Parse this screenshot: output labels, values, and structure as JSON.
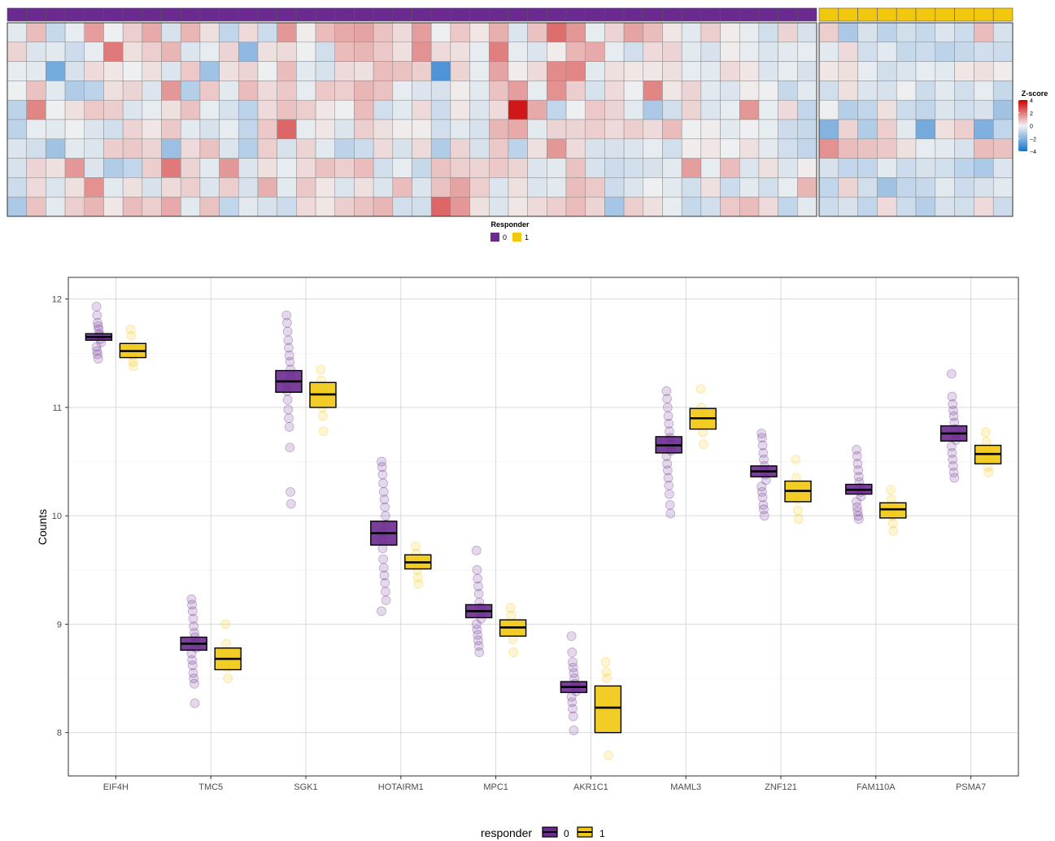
{
  "heatmap": {
    "legend_title": "Z-score",
    "legend_ticks": [
      4,
      2,
      0,
      -2,
      -4
    ],
    "annotation_title": "Responder",
    "annotation_levels": [
      "0",
      "1"
    ],
    "colors": {
      "low": "#1874CD",
      "mid": "#F2F2F2",
      "high": "#CD0000",
      "group0": "#6A2A8F",
      "group1": "#F2C80F"
    }
  },
  "chart_data": [
    {
      "type": "heatmap",
      "value_range": [
        -4,
        4
      ],
      "column_groups": [
        {
          "name": "0",
          "n_columns": 42
        },
        {
          "name": "1",
          "n_columns": 10
        }
      ],
      "values": [
        [
          -0.3,
          0.9,
          -0.8,
          -0.2,
          1.4,
          -0.1,
          0.6,
          1.2,
          -0.5,
          1.0,
          0.3,
          -0.9,
          0.4,
          -0.7,
          1.5,
          0.1,
          0.9,
          1.2,
          1.3,
          0.8,
          0.4,
          1.4,
          -0.1,
          0.7,
          0.2,
          1.1,
          -0.4,
          0.8,
          2.2,
          1.5,
          -0.2,
          0.5,
          1.3,
          0.9,
          0.2,
          -0.3,
          0.6,
          0.1,
          -0.2,
          -0.6,
          0.5,
          -0.5,
          0.6,
          -1.3,
          -0.5,
          -1.0,
          -0.6,
          -0.8,
          -0.4,
          -0.7,
          0.9,
          -0.5
        ],
        [
          0.5,
          -0.4,
          -0.3,
          -0.7,
          -0.2,
          2.0,
          0.3,
          0.6,
          1.0,
          -0.4,
          -0.2,
          0.5,
          -1.8,
          0.3,
          0.4,
          -0.1,
          -0.6,
          0.9,
          1.0,
          0.7,
          0.3,
          1.6,
          0.4,
          0.3,
          -0.2,
          1.9,
          -0.2,
          -0.4,
          0.1,
          1.0,
          1.2,
          -0.2,
          -0.6,
          0.4,
          0.5,
          -0.3,
          -0.5,
          0.1,
          -0.2,
          -0.4,
          -0.3,
          -0.2,
          -0.3,
          0.4,
          -0.6,
          -0.3,
          -0.8,
          -0.7,
          -1.0,
          -0.8,
          -0.6,
          -0.7
        ],
        [
          -0.2,
          -0.3,
          -2.3,
          -0.5,
          0.4,
          0.2,
          -0.1,
          0.3,
          -0.4,
          0.7,
          -1.5,
          0.3,
          0.5,
          -0.1,
          0.9,
          -0.3,
          -0.5,
          0.4,
          0.3,
          0.9,
          0.8,
          0.6,
          -3.0,
          0.5,
          -0.2,
          1.3,
          0.1,
          0.4,
          1.7,
          1.8,
          -0.3,
          0.3,
          0.2,
          0.2,
          0.3,
          -0.2,
          -0.3,
          0.4,
          0.2,
          -0.4,
          -0.2,
          -0.5,
          0.2,
          0.3,
          -0.2,
          -0.6,
          -0.4,
          -0.2,
          -0.3,
          0.2,
          0.3,
          0.1
        ],
        [
          -0.1,
          0.8,
          -0.3,
          -1.2,
          -1.0,
          0.3,
          0.5,
          -0.4,
          1.5,
          -1.1,
          0.7,
          -0.3,
          0.9,
          0.4,
          0.7,
          -0.2,
          0.7,
          0.6,
          1.0,
          0.8,
          -0.2,
          -0.4,
          -0.5,
          0.1,
          -0.3,
          0.8,
          1.4,
          -0.2,
          1.6,
          0.6,
          -0.5,
          0.4,
          -0.1,
          1.8,
          0.2,
          0.5,
          -0.3,
          -0.4,
          0.1,
          -0.1,
          -0.8,
          -0.3,
          -0.6,
          0.3,
          -0.4,
          -0.5,
          -0.1,
          -0.7,
          -0.3,
          -0.6,
          -0.2,
          -0.8
        ],
        [
          -1.0,
          1.8,
          -0.1,
          0.3,
          0.7,
          0.6,
          -0.4,
          -0.2,
          0.3,
          0.8,
          -0.2,
          -0.5,
          -1.0,
          0.4,
          0.8,
          0.6,
          0.2,
          -0.1,
          0.9,
          -0.6,
          -0.3,
          0.4,
          -0.7,
          0.2,
          -0.4,
          0.4,
          3.6,
          1.2,
          -0.9,
          -0.1,
          0.7,
          0.5,
          -0.3,
          -1.3,
          -0.6,
          0.5,
          -0.4,
          -0.2,
          1.5,
          -0.2,
          0.4,
          -0.9,
          -0.1,
          -1.1,
          -0.9,
          0.3,
          -0.7,
          -0.9,
          -0.4,
          -0.6,
          -0.5,
          -1.5
        ],
        [
          -1.0,
          -0.2,
          -0.3,
          -0.1,
          -0.4,
          -0.6,
          0.5,
          0.2,
          0.7,
          -0.3,
          -0.5,
          -0.2,
          -0.9,
          0.7,
          2.3,
          -0.2,
          0.2,
          -0.4,
          0.6,
          0.3,
          0.1,
          0.1,
          -0.6,
          -0.3,
          -0.5,
          1.0,
          1.2,
          -0.3,
          0.5,
          0.5,
          0.6,
          0.4,
          0.6,
          0.4,
          0.9,
          -0.1,
          0.1,
          -0.3,
          -0.1,
          -0.2,
          -0.7,
          -0.8,
          -2.0,
          0.5,
          -1.2,
          0.6,
          -0.3,
          -2.3,
          0.3,
          0.6,
          -2.1,
          -0.9
        ],
        [
          -0.4,
          -0.6,
          -1.5,
          -0.3,
          -0.4,
          0.6,
          0.7,
          0.5,
          -1.6,
          0.4,
          0.8,
          -0.4,
          -1.1,
          0.6,
          -0.5,
          0.5,
          -0.3,
          -1.0,
          -0.7,
          0.4,
          -0.5,
          0.4,
          -1.2,
          0.5,
          -0.5,
          0.7,
          -1.0,
          0.3,
          1.5,
          0.4,
          -0.5,
          -0.5,
          -0.4,
          -0.2,
          -0.6,
          0.1,
          0.2,
          -0.1,
          0.3,
          -0.3,
          -0.6,
          -0.9,
          1.6,
          0.9,
          0.8,
          0.7,
          0.3,
          -0.2,
          -0.3,
          -0.5,
          0.9,
          0.8
        ],
        [
          -0.5,
          0.5,
          0.3,
          1.5,
          -0.4,
          -1.2,
          -0.9,
          0.6,
          2.0,
          0.5,
          -0.3,
          1.5,
          -0.4,
          0.3,
          -0.2,
          0.4,
          0.8,
          0.6,
          0.9,
          -0.6,
          -0.2,
          -0.8,
          0.8,
          0.6,
          0.5,
          0.7,
          0.5,
          -0.4,
          -0.3,
          0.8,
          -0.5,
          -0.7,
          -0.6,
          -0.5,
          -0.3,
          1.4,
          -0.2,
          0.9,
          -0.4,
          0.3,
          -0.4,
          0.1,
          -0.5,
          -0.9,
          -0.9,
          -0.3,
          -0.7,
          -0.5,
          -0.6,
          -1.0,
          -1.3,
          -0.4
        ],
        [
          -0.7,
          0.4,
          -0.4,
          0.3,
          1.6,
          -0.3,
          0.3,
          -0.5,
          0.4,
          0.6,
          -0.4,
          0.6,
          -0.5,
          1.1,
          -0.3,
          0.7,
          0.2,
          -0.4,
          0.3,
          -0.4,
          0.9,
          -0.4,
          0.8,
          1.3,
          0.6,
          -0.4,
          0.3,
          -0.4,
          -0.3,
          0.9,
          0.7,
          -0.7,
          -0.4,
          -0.1,
          -0.3,
          -0.6,
          0.3,
          -0.7,
          -0.3,
          -0.6,
          -0.2,
          1.0,
          -0.9,
          0.5,
          -0.6,
          -1.5,
          -0.9,
          -0.8,
          -0.3,
          -0.7,
          -0.5,
          -0.3
        ],
        [
          -1.3,
          0.8,
          -0.3,
          0.6,
          1.0,
          0.2,
          0.9,
          0.6,
          1.2,
          -0.3,
          0.8,
          -0.9,
          -0.3,
          -0.5,
          -0.7,
          0.4,
          0.2,
          0.6,
          0.8,
          1.0,
          -0.6,
          -0.6,
          2.3,
          1.5,
          0.3,
          -0.4,
          0.2,
          0.4,
          0.6,
          0.9,
          0.5,
          -1.4,
          0.6,
          0.3,
          -0.2,
          -0.8,
          -0.6,
          0.7,
          0.9,
          0.4,
          -0.9,
          -0.3,
          -0.7,
          -0.5,
          -0.9,
          0.4,
          -0.7,
          -1.1,
          -0.5,
          -0.6,
          0.4,
          -0.7
        ]
      ]
    },
    {
      "type": "box",
      "ylabel": "Counts",
      "ylim": [
        7.6,
        12.2
      ],
      "y_ticks": [
        8,
        9,
        10,
        11,
        12
      ],
      "legend_title": "responder",
      "legend_position": "bottom",
      "categories": [
        "EIF4H",
        "TMC5",
        "SGK1",
        "HOTAIRM1",
        "MPC1",
        "AKR1C1",
        "MAML3",
        "ZNF121",
        "FAM110A",
        "PSMA7"
      ],
      "series": [
        {
          "name": "0",
          "color": "#6A2A8F",
          "boxes": [
            {
              "lower": 11.62,
              "median": 11.65,
              "upper": 11.68
            },
            {
              "lower": 8.76,
              "median": 8.82,
              "upper": 8.88
            },
            {
              "lower": 11.14,
              "median": 11.24,
              "upper": 11.34
            },
            {
              "lower": 9.73,
              "median": 9.84,
              "upper": 9.95
            },
            {
              "lower": 9.06,
              "median": 9.12,
              "upper": 9.18
            },
            {
              "lower": 8.37,
              "median": 8.42,
              "upper": 8.47
            },
            {
              "lower": 10.58,
              "median": 10.65,
              "upper": 10.73
            },
            {
              "lower": 10.36,
              "median": 10.41,
              "upper": 10.46
            },
            {
              "lower": 10.2,
              "median": 10.24,
              "upper": 10.29
            },
            {
              "lower": 10.69,
              "median": 10.76,
              "upper": 10.83
            }
          ],
          "points": [
            [
              11.93,
              11.85,
              11.78,
              11.75,
              11.72,
              11.68,
              11.66,
              11.63,
              11.6,
              11.56,
              11.52,
              11.49,
              11.45
            ],
            [
              9.23,
              9.18,
              9.12,
              9.05,
              8.98,
              8.92,
              8.88,
              8.83,
              8.78,
              8.73,
              8.67,
              8.62,
              8.55,
              8.5,
              8.45,
              8.27
            ],
            [
              11.85,
              11.78,
              11.7,
              11.62,
              11.55,
              11.48,
              11.42,
              11.35,
              11.28,
              11.22,
              11.15,
              11.07,
              10.98,
              10.9,
              10.82,
              10.63,
              10.22,
              10.11
            ],
            [
              10.5,
              10.45,
              10.38,
              10.3,
              10.22,
              10.15,
              10.08,
              10.0,
              9.92,
              9.85,
              9.78,
              9.7,
              9.6,
              9.52,
              9.45,
              9.38,
              9.3,
              9.22,
              9.12
            ],
            [
              9.68,
              9.5,
              9.42,
              9.35,
              9.28,
              9.2,
              9.15,
              9.1,
              9.05,
              9.0,
              8.95,
              8.9,
              8.85,
              8.8,
              8.74
            ],
            [
              8.89,
              8.74,
              8.65,
              8.6,
              8.55,
              8.5,
              8.45,
              8.42,
              8.38,
              8.33,
              8.28,
              8.22,
              8.15,
              8.02
            ],
            [
              11.15,
              11.08,
              11.0,
              10.92,
              10.85,
              10.78,
              10.72,
              10.66,
              10.6,
              10.55,
              10.48,
              10.42,
              10.35,
              10.28,
              10.2,
              10.1,
              10.02
            ],
            [
              10.76,
              10.72,
              10.65,
              10.58,
              10.52,
              10.46,
              10.42,
              10.38,
              10.33,
              10.27,
              10.22,
              10.17,
              10.1,
              10.06,
              10.0
            ],
            [
              10.61,
              10.55,
              10.48,
              10.42,
              10.36,
              10.31,
              10.26,
              10.22,
              10.18,
              10.13,
              10.08,
              10.04,
              10.0,
              9.97
            ],
            [
              11.31,
              11.1,
              11.03,
              10.97,
              10.92,
              10.86,
              10.8,
              10.75,
              10.7,
              10.64,
              10.58,
              10.52,
              10.46,
              10.4,
              10.35
            ]
          ]
        },
        {
          "name": "1",
          "color": "#F2C80F",
          "boxes": [
            {
              "lower": 11.46,
              "median": 11.52,
              "upper": 11.59
            },
            {
              "lower": 8.58,
              "median": 8.68,
              "upper": 8.78
            },
            {
              "lower": 11.0,
              "median": 11.12,
              "upper": 11.23
            },
            {
              "lower": 9.51,
              "median": 9.57,
              "upper": 9.64
            },
            {
              "lower": 8.89,
              "median": 8.97,
              "upper": 9.04
            },
            {
              "lower": 8.0,
              "median": 8.23,
              "upper": 8.43
            },
            {
              "lower": 10.8,
              "median": 10.9,
              "upper": 10.99
            },
            {
              "lower": 10.13,
              "median": 10.23,
              "upper": 10.32
            },
            {
              "lower": 9.98,
              "median": 10.06,
              "upper": 10.12
            },
            {
              "lower": 10.48,
              "median": 10.57,
              "upper": 10.65
            }
          ],
          "points": [
            [
              11.72,
              11.66,
              11.55,
              11.48,
              11.42,
              11.38
            ],
            [
              9.0,
              8.82,
              8.72,
              8.6,
              8.5
            ],
            [
              11.35,
              11.25,
              11.12,
              11.0,
              10.92,
              10.78
            ],
            [
              9.72,
              9.65,
              9.57,
              9.5,
              9.43,
              9.37
            ],
            [
              9.15,
              9.08,
              9.0,
              8.93,
              8.86,
              8.74
            ],
            [
              8.65,
              8.56,
              8.5,
              8.3,
              8.05,
              7.79
            ],
            [
              11.17,
              11.0,
              10.92,
              10.85,
              10.77,
              10.66
            ],
            [
              10.52,
              10.35,
              10.25,
              10.15,
              10.05,
              9.97
            ],
            [
              10.24,
              10.15,
              10.07,
              10.0,
              9.93,
              9.86
            ],
            [
              10.77,
              10.68,
              10.6,
              10.52,
              10.45,
              10.4
            ]
          ]
        }
      ]
    }
  ]
}
